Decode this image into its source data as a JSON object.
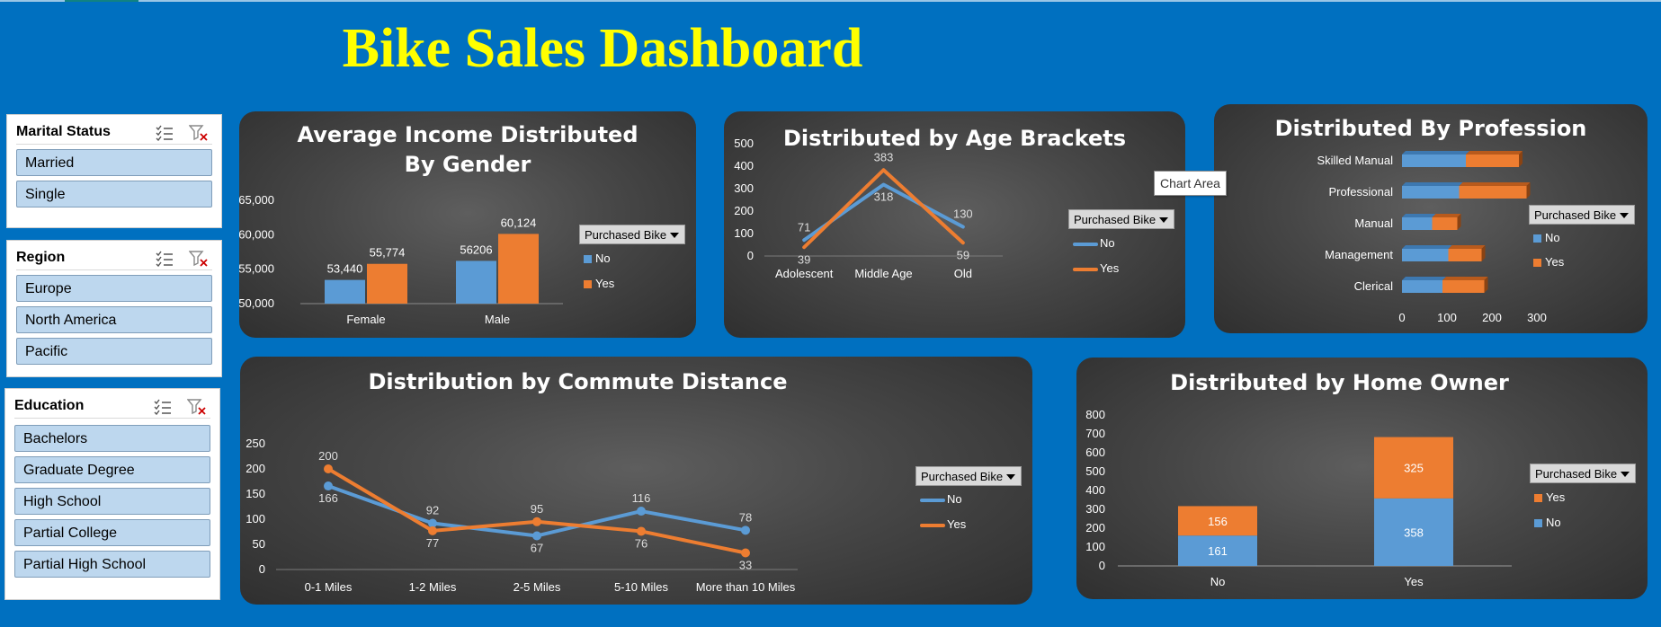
{
  "dashboard_title": "Bike Sales Dashboard",
  "tooltip": "Chart Area",
  "colors": {
    "no": "#5b9bd5",
    "yes": "#ed7d31",
    "title": "#ffff00",
    "background": "#0070c0"
  },
  "slicers": [
    {
      "title": "Marital Status",
      "items": [
        "Married",
        "Single"
      ]
    },
    {
      "title": "Region",
      "items": [
        "Europe",
        "North America",
        "Pacific"
      ]
    },
    {
      "title": "Education",
      "items": [
        "Bachelors",
        "Graduate Degree",
        "High School",
        "Partial College",
        "Partial High School"
      ]
    }
  ],
  "chart_data": [
    {
      "type": "bar",
      "title": "Average Income Distributed By Gender",
      "filter_label": "Purchased Bike",
      "categories": [
        "Female",
        "Male"
      ],
      "series": [
        {
          "name": "No",
          "values": [
            53440,
            56206
          ],
          "labels": [
            "53,440",
            "56206"
          ]
        },
        {
          "name": "Yes",
          "values": [
            55774,
            60124
          ],
          "labels": [
            "55,774",
            "60,124"
          ]
        }
      ],
      "ylim": [
        50000,
        65000
      ],
      "yticks": [
        "50,000",
        "55,000",
        "60,000",
        "65,000"
      ],
      "legend_position": "right"
    },
    {
      "type": "line",
      "title": "Distributed by Age Brackets",
      "filter_label": "Purchased Bike",
      "categories": [
        "Adolescent",
        "Middle Age",
        "Old"
      ],
      "series": [
        {
          "name": "No",
          "values": [
            71,
            318,
            130
          ]
        },
        {
          "name": "Yes",
          "values": [
            39,
            383,
            59
          ]
        }
      ],
      "ylim": [
        0,
        500
      ],
      "yticks": [
        "0",
        "100",
        "200",
        "300",
        "400",
        "500"
      ],
      "legend_position": "right"
    },
    {
      "type": "bar",
      "orientation": "horizontal",
      "stacked": true,
      "title": "Distributed By Profession",
      "filter_label": "Purchased Bike",
      "categories": [
        "Skilled Manual",
        "Professional",
        "Manual",
        "Management",
        "Clerical"
      ],
      "series": [
        {
          "name": "No",
          "values": [
            142,
            127,
            67,
            103,
            90
          ]
        },
        {
          "name": "Yes",
          "values": [
            118,
            150,
            56,
            74,
            93
          ]
        }
      ],
      "xlim": [
        0,
        300
      ],
      "xticks": [
        "0",
        "100",
        "200",
        "300"
      ],
      "legend_position": "right"
    },
    {
      "type": "line",
      "title": "Distribution by Commute Distance",
      "filter_label": "Purchased Bike",
      "categories": [
        "0-1 Miles",
        "1-2 Miles",
        "2-5 Miles",
        "5-10 Miles",
        "More than 10 Miles"
      ],
      "series": [
        {
          "name": "No",
          "values": [
            166,
            92,
            67,
            116,
            78
          ]
        },
        {
          "name": "Yes",
          "values": [
            200,
            77,
            95,
            76,
            33
          ]
        }
      ],
      "ylim": [
        0,
        250
      ],
      "yticks": [
        "0",
        "50",
        "100",
        "150",
        "200",
        "250"
      ],
      "legend_position": "right"
    },
    {
      "type": "bar",
      "stacked": true,
      "title": "Distributed by Home Owner",
      "filter_label": "Purchased Bike",
      "categories": [
        "No",
        "Yes"
      ],
      "series": [
        {
          "name": "No",
          "values": [
            161,
            358
          ]
        },
        {
          "name": "Yes",
          "values": [
            156,
            325
          ]
        }
      ],
      "ylim": [
        0,
        800
      ],
      "yticks": [
        "0",
        "100",
        "200",
        "300",
        "400",
        "500",
        "600",
        "700",
        "800"
      ],
      "legend_order": [
        "Yes",
        "No"
      ],
      "legend_position": "right"
    }
  ]
}
